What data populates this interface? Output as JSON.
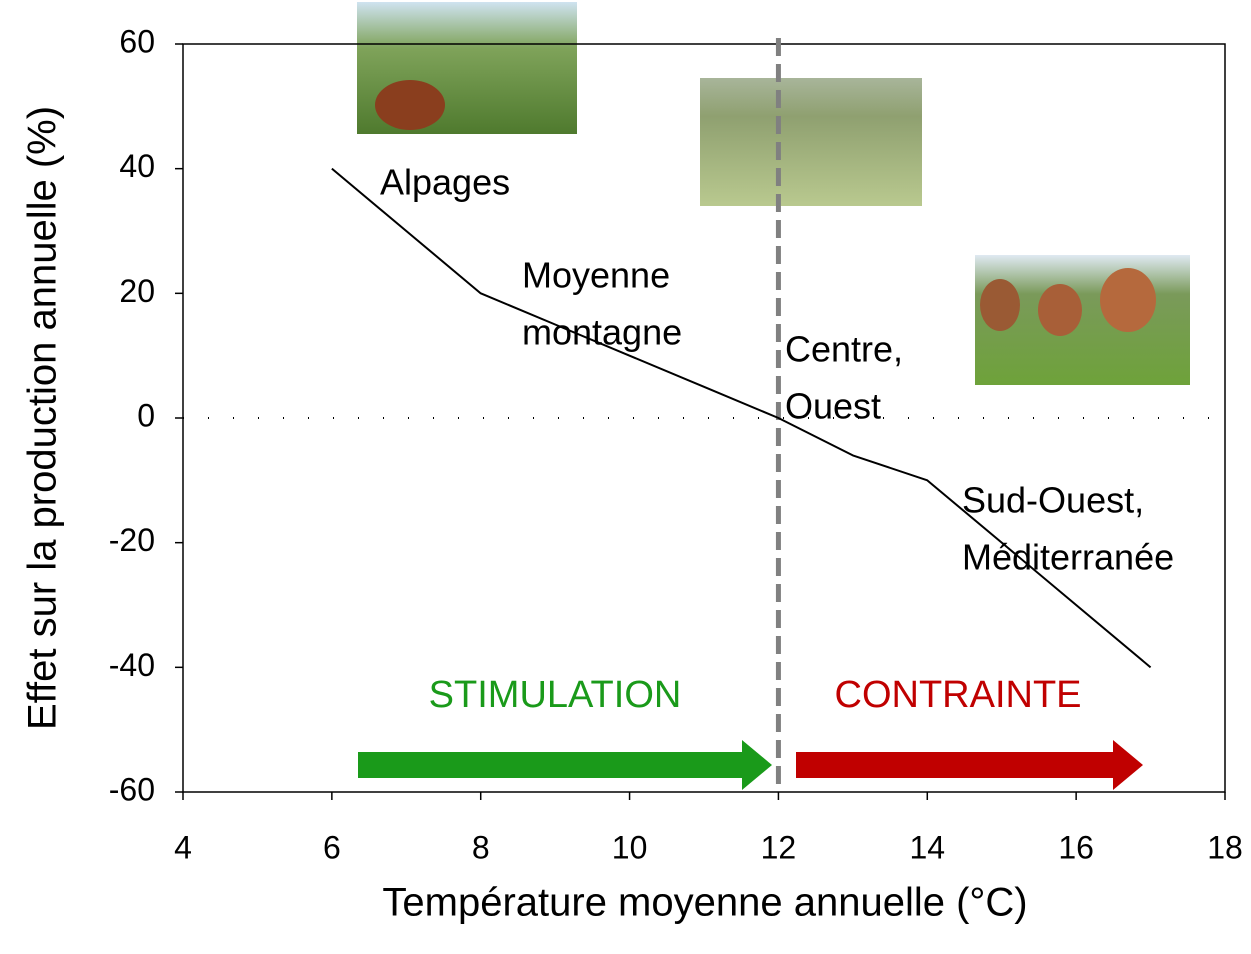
{
  "chart_data": {
    "type": "line",
    "xlabel": "Température moyenne annuelle (°C)",
    "ylabel": "Effet sur la production annuelle (%)",
    "x": [
      6,
      7,
      8,
      9,
      10,
      11,
      12,
      13,
      14,
      15,
      16,
      17
    ],
    "series": [
      {
        "color": "#000000",
        "values": [
          40,
          30,
          20,
          15,
          10,
          5,
          0,
          -6,
          -10,
          -20,
          -30,
          -40
        ]
      }
    ],
    "xlim": [
      4,
      18
    ],
    "xticks": [
      4,
      6,
      8,
      10,
      12,
      14,
      16,
      18
    ],
    "ylim": [
      -60,
      60
    ],
    "yticks": [
      -60,
      -40,
      -20,
      0,
      20,
      40,
      60
    ],
    "vline": {
      "x": 12,
      "color": "#808080"
    },
    "hline": 0,
    "annotations": [
      [
        "Alpages"
      ],
      [
        "Moyenne",
        "montagne"
      ],
      [
        "Centre,",
        "Ouest"
      ],
      [
        "Sud-Ouest,",
        "Méditerranée"
      ]
    ],
    "zones": [
      {
        "label": "STIMULATION",
        "color": "#1a9a1a"
      },
      {
        "label": "CONTRAINTE",
        "color": "#c00000"
      }
    ]
  }
}
